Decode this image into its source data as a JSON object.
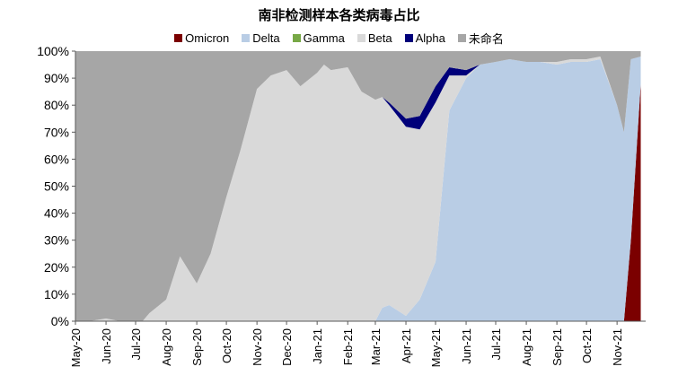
{
  "chart_data": {
    "type": "area",
    "title": "南非检测样本各类病毒占比",
    "stacked": "percent",
    "ylim": [
      0,
      100
    ],
    "yticks": [
      "0%",
      "10%",
      "20%",
      "30%",
      "40%",
      "50%",
      "60%",
      "70%",
      "80%",
      "90%",
      "100%"
    ],
    "xtick_labels": [
      "May-20",
      "Jun-20",
      "Jul-20",
      "Aug-20",
      "Sep-20",
      "Oct-20",
      "Nov-20",
      "Dec-20",
      "Jan-21",
      "Feb-21",
      "Mar-21",
      "Apr-21",
      "May-21",
      "Jun-21",
      "Jul-21",
      "Aug-21",
      "Sep-21",
      "Oct-21",
      "Nov-21"
    ],
    "legend_placement": "top",
    "x": [
      "2020-05-01",
      "2020-05-15",
      "2020-06-01",
      "2020-06-15",
      "2020-07-01",
      "2020-07-08",
      "2020-07-15",
      "2020-08-01",
      "2020-08-15",
      "2020-09-01",
      "2020-09-15",
      "2020-10-01",
      "2020-10-15",
      "2020-11-01",
      "2020-11-15",
      "2020-12-01",
      "2020-12-15",
      "2021-01-01",
      "2021-01-08",
      "2021-01-15",
      "2021-02-01",
      "2021-02-15",
      "2021-03-01",
      "2021-03-08",
      "2021-03-15",
      "2021-04-01",
      "2021-04-15",
      "2021-05-01",
      "2021-05-15",
      "2021-06-01",
      "2021-06-15",
      "2021-07-01",
      "2021-07-15",
      "2021-08-01",
      "2021-08-15",
      "2021-09-01",
      "2021-09-15",
      "2021-10-01",
      "2021-10-15",
      "2021-11-01",
      "2021-11-08",
      "2021-11-15",
      "2021-11-25"
    ],
    "series": [
      {
        "name": "Omicron",
        "color": "#7b0000",
        "values": [
          0,
          0,
          0,
          0,
          0,
          0,
          0,
          0,
          0,
          0,
          0,
          0,
          0,
          0,
          0,
          0,
          0,
          0,
          0,
          0,
          0,
          0,
          0,
          0,
          0,
          0,
          0,
          0,
          0,
          0,
          0,
          0,
          0,
          0,
          0,
          0,
          0,
          0,
          0,
          0,
          0,
          30,
          88
        ]
      },
      {
        "name": "Delta",
        "color": "#b9cde5",
        "values": [
          0,
          0,
          0,
          0,
          0,
          0,
          0,
          0,
          0,
          0,
          0,
          0,
          0,
          0,
          0,
          0,
          0,
          0,
          0,
          0,
          0,
          0,
          0,
          5,
          6,
          2,
          8,
          22,
          78,
          90,
          95,
          96,
          97,
          96,
          96,
          95,
          96,
          96,
          97,
          80,
          70,
          67,
          10
        ]
      },
      {
        "name": "Gamma",
        "color": "#77a846",
        "values": [
          0,
          0,
          0,
          0,
          0,
          0,
          0,
          0,
          0,
          0,
          0,
          0,
          0,
          0,
          0,
          0,
          0,
          0,
          0,
          0,
          0,
          0,
          0,
          0,
          0,
          0,
          0,
          0,
          0,
          0,
          0,
          0,
          0,
          0,
          0,
          0,
          0,
          0,
          0,
          0,
          0,
          0,
          0
        ]
      },
      {
        "name": "Beta",
        "color": "#d9d9d9",
        "values": [
          0,
          0,
          1,
          0,
          0,
          0,
          3,
          8,
          24,
          14,
          25,
          46,
          63,
          86,
          91,
          93,
          87,
          92,
          95,
          93,
          94,
          85,
          82,
          78,
          74,
          70,
          63,
          59,
          13,
          1,
          0,
          0,
          0,
          0,
          0,
          1,
          1,
          1,
          1,
          0,
          0,
          0,
          0
        ]
      },
      {
        "name": "Alpha",
        "color": "#00007a",
        "values": [
          0,
          0,
          0,
          0,
          0,
          0,
          0,
          0,
          0,
          0,
          0,
          0,
          0,
          0,
          0,
          0,
          0,
          0,
          0,
          0,
          0,
          0,
          0,
          0,
          1,
          3,
          5,
          6,
          3,
          2,
          0,
          0,
          0,
          0,
          0,
          0,
          0,
          0,
          0,
          0,
          0,
          0,
          0
        ]
      },
      {
        "name": "未命名",
        "color": "#a6a6a6",
        "values": [
          100,
          100,
          99,
          100,
          100,
          100,
          97,
          92,
          76,
          86,
          75,
          54,
          37,
          14,
          9,
          7,
          13,
          8,
          5,
          7,
          6,
          15,
          18,
          17,
          19,
          25,
          24,
          13,
          6,
          7,
          5,
          4,
          3,
          4,
          4,
          4,
          3,
          3,
          2,
          20,
          30,
          3,
          2
        ]
      }
    ]
  }
}
